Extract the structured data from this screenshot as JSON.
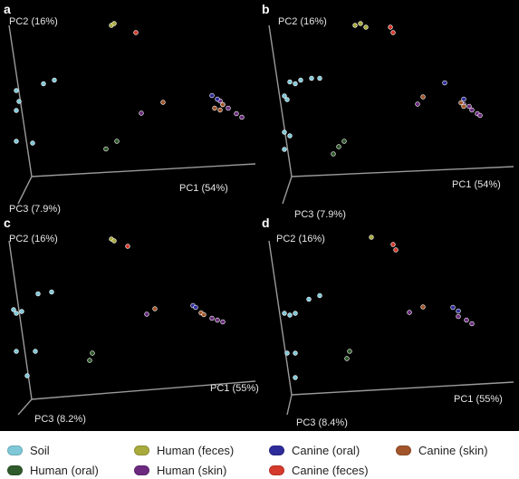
{
  "chart_data": [
    {
      "type": "scatter",
      "panel_label": "a",
      "axis_labels": {
        "pc1": "PC1 (54%)",
        "pc2": "PC2 (16%)",
        "pc3": "PC3 (7.9%)"
      },
      "series": [
        {
          "name": "Soil",
          "points": [
            {
              "pc1": -0.42,
              "pc2": 0.05,
              "pc3": 0.1
            },
            {
              "pc1": -0.41,
              "pc2": 0.1,
              "pc3": 0.1
            },
            {
              "pc1": -0.33,
              "pc2": 0.18,
              "pc3": 0.05
            },
            {
              "pc1": -0.29,
              "pc2": 0.2,
              "pc3": 0.05
            },
            {
              "pc1": -0.42,
              "pc2": 0.16,
              "pc3": 0.1
            },
            {
              "pc1": -0.42,
              "pc2": -0.12,
              "pc3": 0.1
            },
            {
              "pc1": -0.36,
              "pc2": -0.13,
              "pc3": 0.1
            }
          ]
        },
        {
          "name": "Human (oral)",
          "points": [
            {
              "pc1": -0.05,
              "pc2": -0.12,
              "pc3": 0.1
            },
            {
              "pc1": -0.1,
              "pc2": -0.18,
              "pc3": 0.05
            }
          ]
        },
        {
          "name": "Human (feces)",
          "points": [
            {
              "pc1": -0.11,
              "pc2": 0.45,
              "pc3": -0.1
            },
            {
              "pc1": -0.1,
              "pc2": 0.46,
              "pc3": -0.1
            }
          ]
        },
        {
          "name": "Human (skin)",
          "points": [
            {
              "pc1": 0.02,
              "pc2": 0.0,
              "pc3": 0.0
            },
            {
              "pc1": 0.3,
              "pc2": 0.05,
              "pc3": -0.05
            },
            {
              "pc1": 0.31,
              "pc2": 0.03,
              "pc3": -0.05
            },
            {
              "pc1": 0.33,
              "pc2": 0.01,
              "pc3": -0.05
            },
            {
              "pc1": 0.36,
              "pc2": -0.02,
              "pc3": -0.05
            },
            {
              "pc1": 0.38,
              "pc2": -0.04,
              "pc3": -0.05
            }
          ]
        },
        {
          "name": "Canine (oral)",
          "points": [
            {
              "pc1": 0.27,
              "pc2": 0.08,
              "pc3": -0.05
            },
            {
              "pc1": 0.29,
              "pc2": 0.06,
              "pc3": -0.05
            }
          ]
        },
        {
          "name": "Canine (skin)",
          "points": [
            {
              "pc1": 0.1,
              "pc2": 0.06,
              "pc3": 0.0
            },
            {
              "pc1": 0.28,
              "pc2": 0.01,
              "pc3": -0.05
            },
            {
              "pc1": 0.3,
              "pc2": 0.0,
              "pc3": -0.05
            },
            {
              "pc1": 0.31,
              "pc2": 0.03,
              "pc3": -0.05
            }
          ]
        },
        {
          "name": "Canine (feces)",
          "points": [
            {
              "pc1": -0.02,
              "pc2": 0.41,
              "pc3": -0.1
            }
          ]
        }
      ]
    },
    {
      "type": "scatter",
      "panel_label": "b",
      "axis_labels": {
        "pc1": "PC1 (54%)",
        "pc2": "PC2 (16%)",
        "pc3": "PC3 (7.9%)"
      },
      "series": [
        {
          "name": "Soil",
          "points": [
            {
              "pc1": -0.38,
              "pc2": 0.19,
              "pc3": 0.05
            },
            {
              "pc1": -0.36,
              "pc2": 0.18,
              "pc3": 0.05
            },
            {
              "pc1": -0.34,
              "pc2": 0.2,
              "pc3": 0.05
            },
            {
              "pc1": -0.3,
              "pc2": 0.21,
              "pc3": 0.05
            },
            {
              "pc1": -0.27,
              "pc2": 0.21,
              "pc3": 0.05
            },
            {
              "pc1": -0.39,
              "pc2": 0.13,
              "pc3": 0.1
            },
            {
              "pc1": -0.38,
              "pc2": 0.11,
              "pc3": 0.1
            },
            {
              "pc1": -0.39,
              "pc2": -0.07,
              "pc3": 0.1
            },
            {
              "pc1": -0.37,
              "pc2": -0.09,
              "pc3": 0.1
            },
            {
              "pc1": -0.37,
              "pc2": -0.13,
              "pc3": 0.2
            }
          ]
        },
        {
          "name": "Human (oral)",
          "points": [
            {
              "pc1": -0.17,
              "pc2": -0.12,
              "pc3": 0.1
            },
            {
              "pc1": -0.19,
              "pc2": -0.15,
              "pc3": 0.1
            },
            {
              "pc1": -0.21,
              "pc2": -0.19,
              "pc3": 0.1
            }
          ]
        },
        {
          "name": "Human (feces)",
          "points": [
            {
              "pc1": -0.17,
              "pc2": 0.45,
              "pc3": -0.1
            },
            {
              "pc1": -0.15,
              "pc2": 0.46,
              "pc3": -0.1
            },
            {
              "pc1": -0.13,
              "pc2": 0.44,
              "pc3": -0.1
            }
          ]
        },
        {
          "name": "Human (skin)",
          "points": [
            {
              "pc1": 0.08,
              "pc2": 0.05,
              "pc3": 0.0
            },
            {
              "pc1": 0.24,
              "pc2": 0.03,
              "pc3": -0.05
            },
            {
              "pc1": 0.26,
              "pc2": 0.02,
              "pc3": -0.05
            },
            {
              "pc1": 0.27,
              "pc2": 0.0,
              "pc3": -0.05
            },
            {
              "pc1": 0.29,
              "pc2": -0.02,
              "pc3": -0.05
            },
            {
              "pc1": 0.3,
              "pc2": -0.03,
              "pc3": -0.05
            }
          ]
        },
        {
          "name": "Canine (oral)",
          "points": [
            {
              "pc1": 0.17,
              "pc2": 0.15,
              "pc3": -0.05
            },
            {
              "pc1": 0.24,
              "pc2": 0.06,
              "pc3": -0.05
            }
          ]
        },
        {
          "name": "Canine (skin)",
          "points": [
            {
              "pc1": 0.1,
              "pc2": 0.09,
              "pc3": 0.0
            },
            {
              "pc1": 0.23,
              "pc2": 0.04,
              "pc3": -0.05
            },
            {
              "pc1": 0.24,
              "pc2": 0.02,
              "pc3": -0.05
            }
          ]
        },
        {
          "name": "Canine (feces)",
          "points": [
            {
              "pc1": -0.04,
              "pc2": 0.44,
              "pc3": -0.1
            },
            {
              "pc1": -0.03,
              "pc2": 0.41,
              "pc3": -0.1
            }
          ]
        }
      ]
    },
    {
      "type": "scatter",
      "panel_label": "c",
      "axis_labels": {
        "pc1": "PC1 (55%)",
        "pc2": "PC2 (16%)",
        "pc3": "PC3 (8.2%)"
      },
      "series": [
        {
          "name": "Soil",
          "points": [
            {
              "pc1": -0.43,
              "pc2": 0.13,
              "pc3": 0.1
            },
            {
              "pc1": -0.42,
              "pc2": 0.11,
              "pc3": 0.1
            },
            {
              "pc1": -0.4,
              "pc2": 0.12,
              "pc3": 0.1
            },
            {
              "pc1": -0.35,
              "pc2": 0.2,
              "pc3": 0.05
            },
            {
              "pc1": -0.3,
              "pc2": 0.21,
              "pc3": 0.05
            },
            {
              "pc1": -0.42,
              "pc2": -0.1,
              "pc3": 0.1
            },
            {
              "pc1": -0.35,
              "pc2": -0.1,
              "pc3": 0.1
            },
            {
              "pc1": -0.36,
              "pc2": -0.2,
              "pc3": 0.2
            }
          ]
        },
        {
          "name": "Human (oral)",
          "points": [
            {
              "pc1": -0.14,
              "pc2": -0.11,
              "pc3": 0.1
            },
            {
              "pc1": -0.15,
              "pc2": -0.15,
              "pc3": 0.1
            }
          ]
        },
        {
          "name": "Human (feces)",
          "points": [
            {
              "pc1": -0.11,
              "pc2": 0.45,
              "pc3": -0.1
            },
            {
              "pc1": -0.1,
              "pc2": 0.44,
              "pc3": -0.1
            }
          ]
        },
        {
          "name": "Human (skin)",
          "points": [
            {
              "pc1": 0.04,
              "pc2": 0.07,
              "pc3": 0.0
            },
            {
              "pc1": 0.27,
              "pc2": 0.03,
              "pc3": -0.05
            },
            {
              "pc1": 0.29,
              "pc2": 0.02,
              "pc3": -0.05
            },
            {
              "pc1": 0.31,
              "pc2": 0.01,
              "pc3": -0.05
            }
          ]
        },
        {
          "name": "Canine (oral)",
          "points": [
            {
              "pc1": 0.2,
              "pc2": 0.1,
              "pc3": -0.05
            },
            {
              "pc1": 0.21,
              "pc2": 0.09,
              "pc3": -0.05
            }
          ]
        },
        {
          "name": "Canine (skin)",
          "points": [
            {
              "pc1": 0.07,
              "pc2": 0.1,
              "pc3": 0.0
            },
            {
              "pc1": 0.23,
              "pc2": 0.06,
              "pc3": -0.05
            },
            {
              "pc1": 0.24,
              "pc2": 0.05,
              "pc3": -0.05
            }
          ]
        },
        {
          "name": "Canine (feces)",
          "points": [
            {
              "pc1": -0.05,
              "pc2": 0.41,
              "pc3": -0.1
            }
          ]
        }
      ]
    },
    {
      "type": "scatter",
      "panel_label": "d",
      "axis_labels": {
        "pc1": "PC1 (55%)",
        "pc2": "PC2 (16%)",
        "pc3": "PC3 (8.4%)"
      },
      "series": [
        {
          "name": "Soil",
          "points": [
            {
              "pc1": -0.39,
              "pc2": 0.11,
              "pc3": 0.1
            },
            {
              "pc1": -0.37,
              "pc2": 0.1,
              "pc3": 0.1
            },
            {
              "pc1": -0.35,
              "pc2": 0.11,
              "pc3": 0.1
            },
            {
              "pc1": -0.31,
              "pc2": 0.17,
              "pc3": 0.05
            },
            {
              "pc1": -0.27,
              "pc2": 0.19,
              "pc3": 0.05
            },
            {
              "pc1": -0.38,
              "pc2": -0.11,
              "pc3": 0.1
            },
            {
              "pc1": -0.35,
              "pc2": -0.11,
              "pc3": 0.1
            },
            {
              "pc1": -0.33,
              "pc2": -0.21,
              "pc3": 0.2
            }
          ]
        },
        {
          "name": "Human (oral)",
          "points": [
            {
              "pc1": -0.15,
              "pc2": -0.1,
              "pc3": 0.1
            },
            {
              "pc1": -0.16,
              "pc2": -0.14,
              "pc3": 0.1
            }
          ]
        },
        {
          "name": "Human (feces)",
          "points": [
            {
              "pc1": -0.11,
              "pc2": 0.46,
              "pc3": -0.1
            }
          ]
        },
        {
          "name": "Human (skin)",
          "points": [
            {
              "pc1": 0.05,
              "pc2": 0.08,
              "pc3": 0.0
            },
            {
              "pc1": 0.22,
              "pc2": 0.04,
              "pc3": -0.05
            },
            {
              "pc1": 0.25,
              "pc2": 0.02,
              "pc3": -0.05
            },
            {
              "pc1": 0.27,
              "pc2": 0.0,
              "pc3": -0.05
            }
          ]
        },
        {
          "name": "Canine (oral)",
          "points": [
            {
              "pc1": 0.2,
              "pc2": 0.09,
              "pc3": -0.05
            },
            {
              "pc1": 0.22,
              "pc2": 0.07,
              "pc3": -0.05
            }
          ]
        },
        {
          "name": "Canine (skin)",
          "points": [
            {
              "pc1": 0.1,
              "pc2": 0.11,
              "pc3": 0.0
            }
          ]
        },
        {
          "name": "Canine (feces)",
          "points": [
            {
              "pc1": -0.03,
              "pc2": 0.42,
              "pc3": -0.1
            },
            {
              "pc1": -0.02,
              "pc2": 0.39,
              "pc3": -0.1
            }
          ]
        }
      ]
    }
  ],
  "legend": {
    "items": [
      {
        "label": "Soil",
        "color": "#7ec8d8"
      },
      {
        "label": "Human (feces)",
        "color": "#a8aa3c"
      },
      {
        "label": "Canine (oral)",
        "color": "#2e2c9a"
      },
      {
        "label": "Canine (skin)",
        "color": "#a2552a"
      },
      {
        "label": "Human (oral)",
        "color": "#2f5a2b"
      },
      {
        "label": "Human (skin)",
        "color": "#6b2a7f"
      },
      {
        "label": "Canine (feces)",
        "color": "#d63a2c"
      }
    ]
  },
  "colors": {
    "background": "#000000",
    "axis": "#9a9a9a",
    "axis_text": "#e6e6e6",
    "panel_label": "#ffffff"
  }
}
